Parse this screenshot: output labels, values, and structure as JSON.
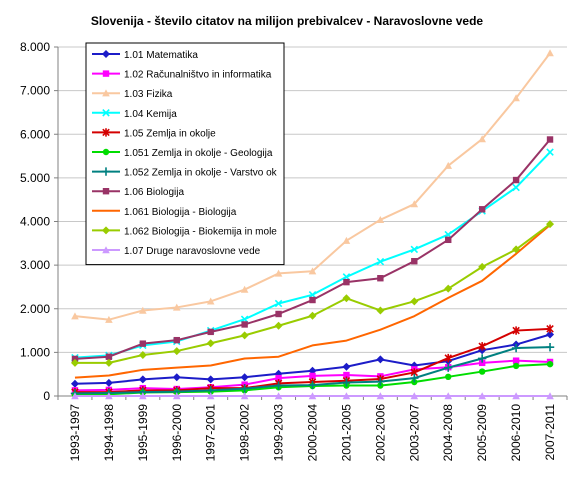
{
  "chart_data": {
    "type": "line",
    "title": "Slovenija - število citatov na milijon prebivalcev - Naravoslovne vede",
    "xlabel": "",
    "ylabel": "",
    "ylim": [
      0,
      8000
    ],
    "yticks": [
      0,
      1000,
      2000,
      3000,
      4000,
      5000,
      6000,
      7000,
      8000
    ],
    "ytick_labels": [
      "0",
      "1.000",
      "2.000",
      "3.000",
      "4.000",
      "5.000",
      "6.000",
      "7.000",
      "8.000"
    ],
    "grid": true,
    "legend_position": "top-left",
    "categories": [
      "1993-1997",
      "1994-1998",
      "1995-1999",
      "1996-2000",
      "1997-2001",
      "1998-2002",
      "1999-2003",
      "2000-2004",
      "2001-2005",
      "2002-2006",
      "2003-2007",
      "2004-2008",
      "2005-2009",
      "2006-2010",
      "2007-2011"
    ],
    "series": [
      {
        "name": "1.01 Matematika",
        "color": "#1c1cc8",
        "marker": "diamond",
        "values": [
          280,
          300,
          380,
          430,
          380,
          430,
          510,
          580,
          670,
          840,
          700,
          800,
          1050,
          1180,
          1410
        ]
      },
      {
        "name": "1.02 Računalništvo in informatika",
        "color": "#ff00ff",
        "marker": "square",
        "values": [
          130,
          140,
          180,
          160,
          200,
          260,
          410,
          460,
          480,
          450,
          610,
          660,
          760,
          810,
          780
        ]
      },
      {
        "name": "1.03 Fizika",
        "color": "#f9c8a0",
        "marker": "triangle",
        "values": [
          1830,
          1750,
          1960,
          2030,
          2170,
          2440,
          2810,
          2860,
          3560,
          4040,
          4400,
          5280,
          5890,
          6830,
          7860
        ]
      },
      {
        "name": "1.04 Kemija",
        "color": "#00ffff",
        "marker": "x",
        "values": [
          880,
          930,
          1160,
          1250,
          1500,
          1760,
          2120,
          2320,
          2730,
          3080,
          3360,
          3700,
          4240,
          4780,
          5590
        ]
      },
      {
        "name": "1.05 Zemlja in okolje",
        "color": "#d40000",
        "marker": "star",
        "values": [
          90,
          90,
          130,
          130,
          180,
          180,
          290,
          320,
          350,
          390,
          540,
          870,
          1140,
          1500,
          1540
        ]
      },
      {
        "name": "1.051 Zemlja in okolje - Geologija",
        "color": "#00dd00",
        "marker": "circle",
        "values": [
          30,
          40,
          80,
          90,
          100,
          130,
          200,
          230,
          240,
          240,
          320,
          440,
          560,
          690,
          730
        ]
      },
      {
        "name": "1.052 Zemlja in okolje - Varstvo ok",
        "color": "#008080",
        "marker": "plus",
        "values": [
          60,
          70,
          90,
          100,
          130,
          170,
          240,
          250,
          310,
          330,
          410,
          650,
          860,
          1100,
          1120
        ]
      },
      {
        "name": "1.06 Biologija",
        "color": "#993366",
        "marker": "square",
        "values": [
          850,
          900,
          1200,
          1280,
          1470,
          1640,
          1880,
          2200,
          2610,
          2700,
          3090,
          3580,
          4280,
          4950,
          5880
        ]
      },
      {
        "name": "1.061 Biologija - Biologija",
        "color": "#ff6600",
        "marker": "none",
        "values": [
          420,
          470,
          600,
          650,
          700,
          860,
          900,
          1160,
          1270,
          1520,
          1830,
          2250,
          2640,
          3260,
          3920
        ]
      },
      {
        "name": "1.062 Biologija - Biokemija in mole",
        "color": "#99cc00",
        "marker": "diamond",
        "values": [
          760,
          760,
          940,
          1030,
          1210,
          1390,
          1610,
          1840,
          2240,
          1960,
          2170,
          2460,
          2960,
          3360,
          3940
        ]
      },
      {
        "name": "1.07 Druge naravoslovne vede",
        "color": "#cc99ff",
        "marker": "triangle",
        "values": [
          0,
          0,
          0,
          0,
          0,
          0,
          0,
          0,
          0,
          0,
          0,
          0,
          0,
          0,
          0
        ]
      }
    ]
  }
}
